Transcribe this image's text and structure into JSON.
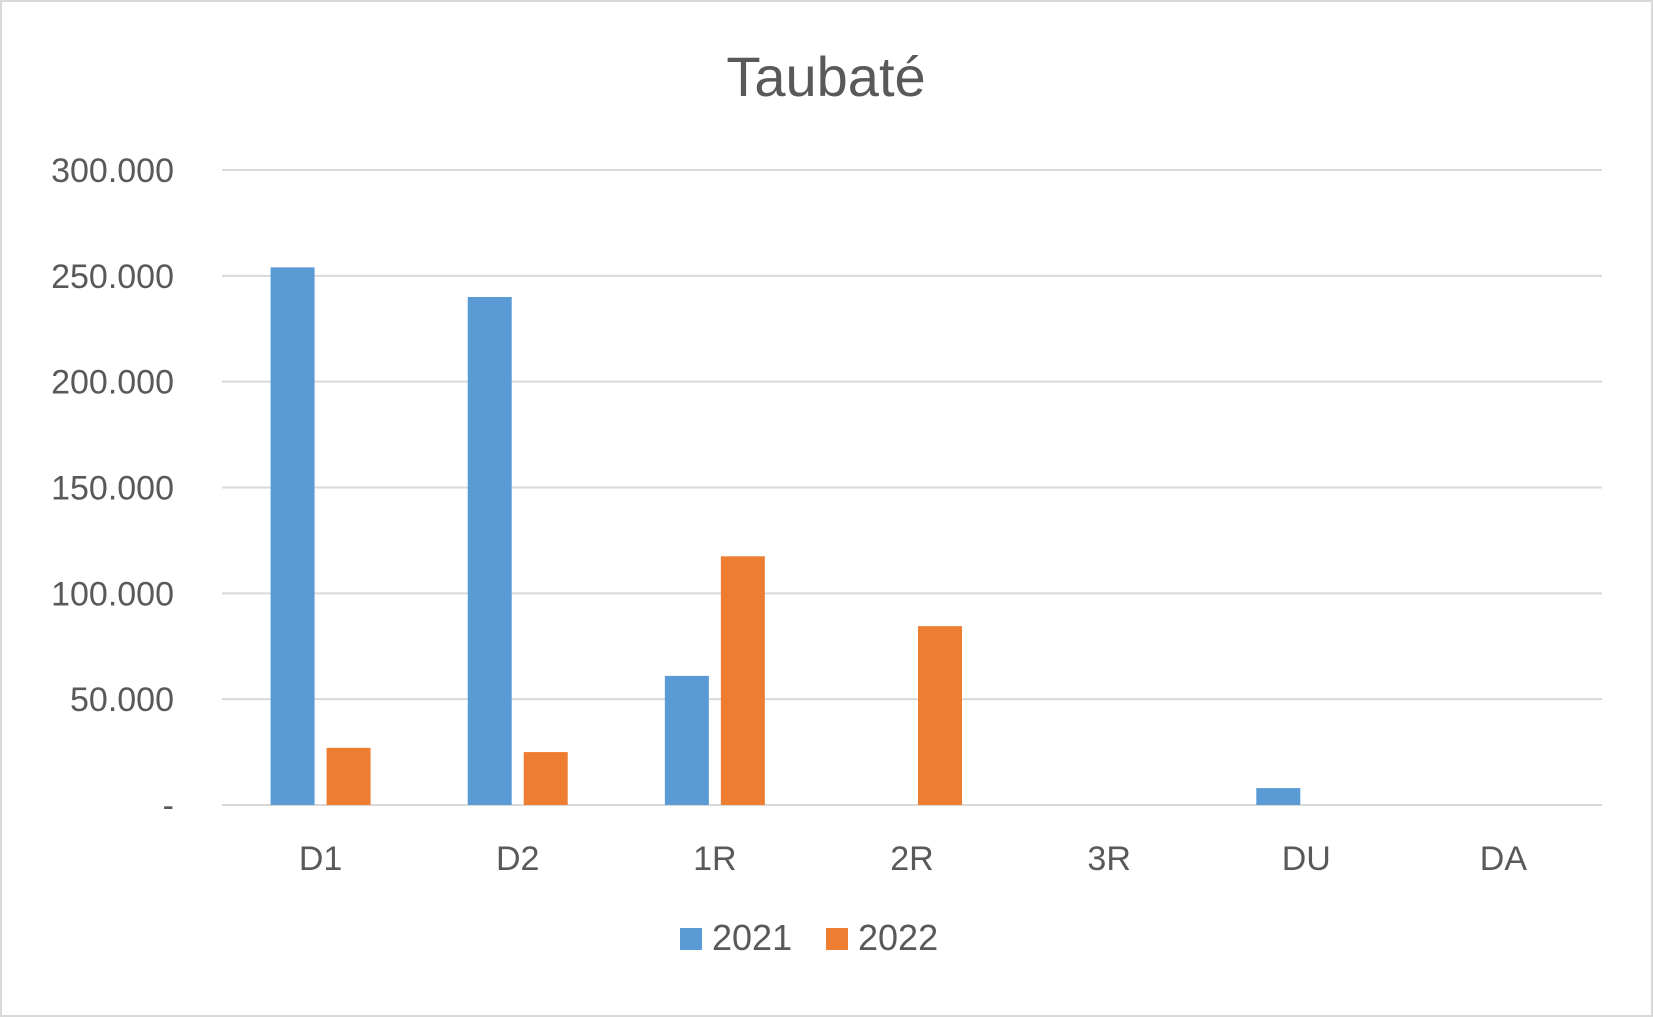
{
  "chart_data": {
    "type": "bar",
    "title": "Taubaté",
    "xlabel": "",
    "ylabel": "",
    "categories": [
      "D1",
      "D2",
      "1R",
      "2R",
      "3R",
      "DU",
      "DA"
    ],
    "series": [
      {
        "name": "2021",
        "color": "#5b9bd5",
        "values": [
          254000,
          240000,
          61000,
          0,
          0,
          8000,
          0
        ]
      },
      {
        "name": "2022",
        "color": "#ed7d31",
        "values": [
          27000,
          25000,
          117500,
          84500,
          0,
          0,
          0
        ]
      }
    ],
    "ylim": [
      0,
      300000
    ],
    "yticks": [
      0,
      50000,
      100000,
      150000,
      200000,
      250000,
      300000
    ],
    "ytick_labels": [
      "-",
      "50.000",
      "100.000",
      "150.000",
      "200.000",
      "250.000",
      "300.000"
    ],
    "grid": true,
    "legend_position": "bottom"
  }
}
